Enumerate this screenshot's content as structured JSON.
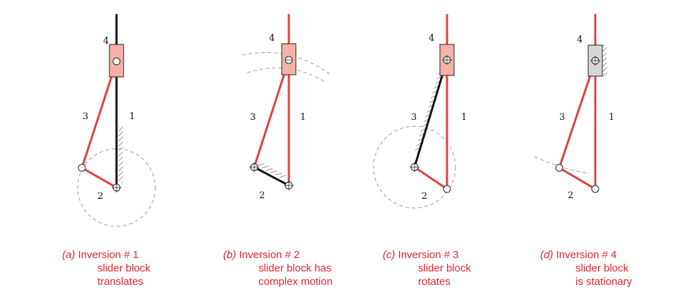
{
  "colors": {
    "link_red": "#e0403f",
    "frame_black": "#111111",
    "block_fill": "#f4b3a6",
    "block_fill_gray": "#d6d6d6",
    "path_gray": "#9a9a9a",
    "caption_red": "#e0262e"
  },
  "panels": [
    {
      "labels": {
        "slider": "4",
        "coupler": "3",
        "ground": "1",
        "crank": "2"
      },
      "caption": {
        "letter": "(a)",
        "line1": "Inversion # 1",
        "line2": "slider block",
        "line3": "translates"
      }
    },
    {
      "labels": {
        "slider": "4",
        "coupler": "3",
        "ground": "1",
        "crank": "2"
      },
      "caption": {
        "letter": "(b)",
        "line1": "Inversion # 2",
        "line2": "slider block has",
        "line3": "complex motion"
      }
    },
    {
      "labels": {
        "slider": "4",
        "coupler": "3",
        "ground": "1",
        "crank": "2"
      },
      "caption": {
        "letter": "(c)",
        "line1": "Inversion # 3",
        "line2": "slider block",
        "line3": "rotates"
      }
    },
    {
      "labels": {
        "slider": "4",
        "coupler": "3",
        "ground": "1",
        "crank": "2"
      },
      "caption": {
        "letter": "(d)",
        "line1": "Inversion # 4",
        "line2": "slider block",
        "line3": "is stationary"
      }
    }
  ]
}
